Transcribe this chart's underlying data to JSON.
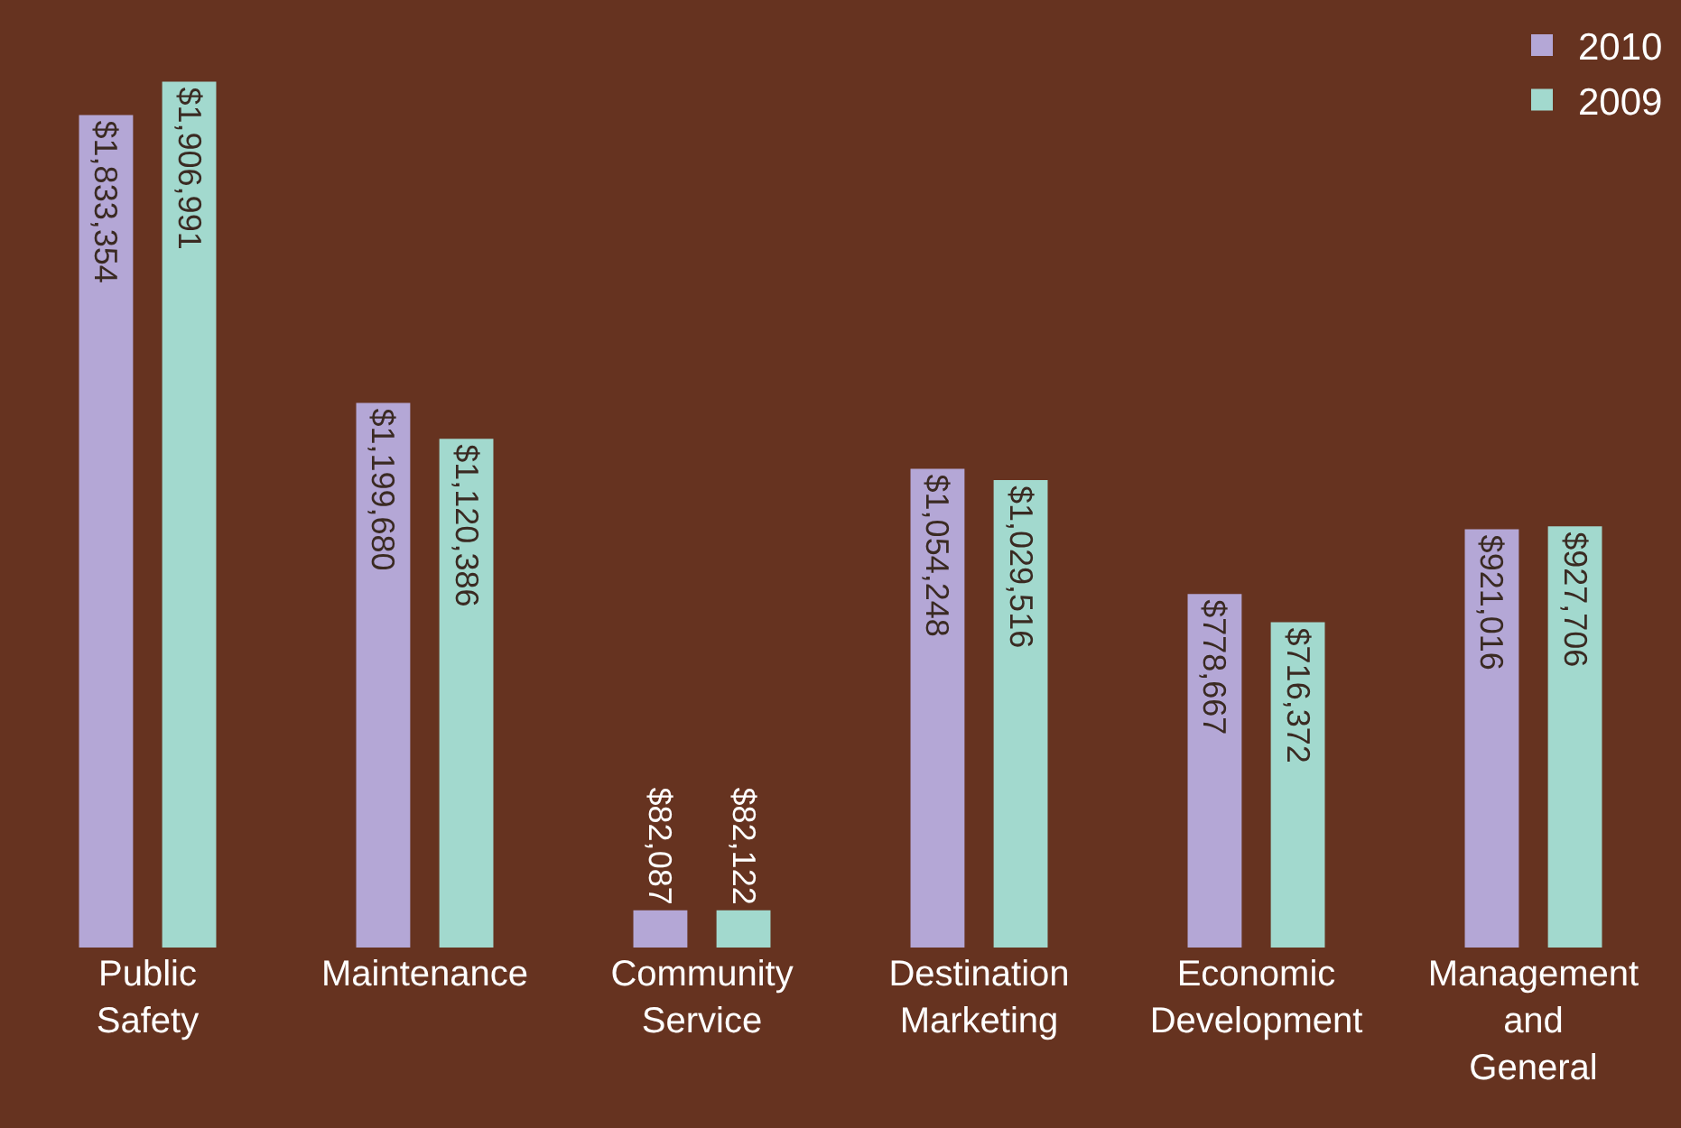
{
  "chart_data": {
    "type": "bar",
    "categories": [
      "Public Safety",
      "Maintenance",
      "Community Service",
      "Destination Marketing",
      "Economic Development",
      "Management and General"
    ],
    "series": [
      {
        "name": "2010",
        "color": "#b4a7d6",
        "values": [
          1833354,
          1199680,
          82087,
          1054248,
          778667,
          921016
        ],
        "value_labels": [
          "$1,833,354",
          "$1,199,680",
          "$82,087",
          "$1,054,248",
          "$778,667",
          "$921,016"
        ]
      },
      {
        "name": "2009",
        "color": "#a2d9ce",
        "values": [
          1906991,
          1120386,
          82122,
          1029516,
          716372,
          927706
        ],
        "value_labels": [
          "$1,906,991",
          "$1,120,386",
          "$82,122",
          "$1,029,516",
          "$716,372",
          "$927,706"
        ]
      }
    ],
    "legend": "top right"
  }
}
